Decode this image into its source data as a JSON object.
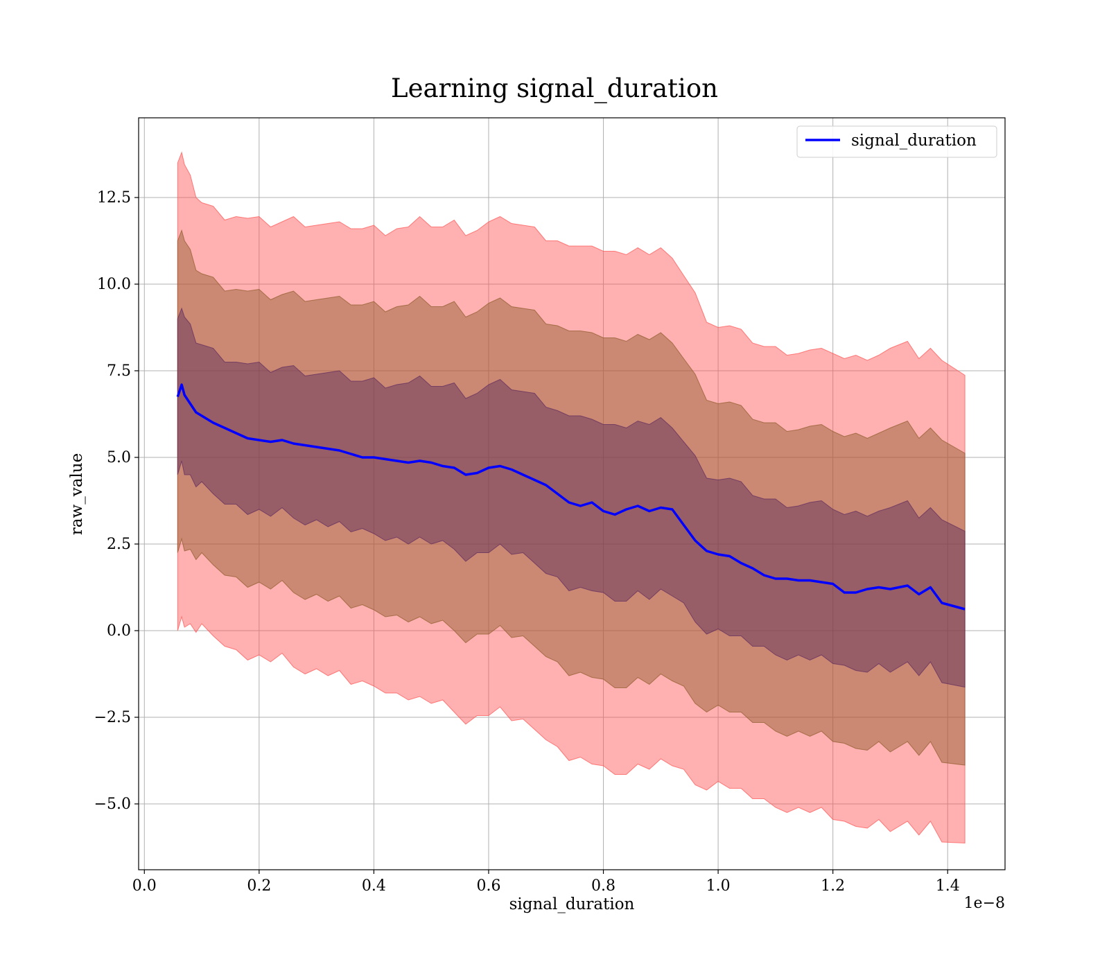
{
  "chart_data": {
    "type": "line",
    "title": "Learning signal_duration",
    "xlabel": "signal_duration",
    "ylabel": "raw_value",
    "x_offset_text": "1e−8",
    "xlim": [
      -0.01,
      1.5
    ],
    "ylim": [
      -6.9,
      14.8
    ],
    "x_ticks": [
      0.0,
      0.2,
      0.4,
      0.6,
      0.8,
      1.0,
      1.2,
      1.4
    ],
    "x_tick_labels": [
      "0.0",
      "0.2",
      "0.4",
      "0.6",
      "0.8",
      "1.0",
      "1.2",
      "1.4"
    ],
    "y_ticks": [
      -5.0,
      -2.5,
      0.0,
      2.5,
      5.0,
      7.5,
      10.0,
      12.5
    ],
    "y_tick_labels": [
      "−5.0",
      "−2.5",
      "0.0",
      "2.5",
      "5.0",
      "7.5",
      "10.0",
      "12.5"
    ],
    "grid": true,
    "legend_position": "upper right",
    "series": [
      {
        "name": "signal_duration",
        "color": "#0000ff",
        "x": [
          0.058,
          0.065,
          0.07,
          0.08,
          0.09,
          0.1,
          0.12,
          0.14,
          0.16,
          0.18,
          0.2,
          0.22,
          0.24,
          0.26,
          0.28,
          0.3,
          0.32,
          0.34,
          0.36,
          0.38,
          0.4,
          0.42,
          0.44,
          0.46,
          0.48,
          0.5,
          0.52,
          0.54,
          0.56,
          0.58,
          0.6,
          0.62,
          0.64,
          0.66,
          0.68,
          0.7,
          0.72,
          0.74,
          0.76,
          0.78,
          0.8,
          0.82,
          0.84,
          0.86,
          0.88,
          0.9,
          0.92,
          0.94,
          0.96,
          0.98,
          1.0,
          1.02,
          1.04,
          1.06,
          1.08,
          1.1,
          1.12,
          1.14,
          1.16,
          1.18,
          1.2,
          1.22,
          1.24,
          1.26,
          1.28,
          1.3,
          1.33,
          1.35,
          1.37,
          1.39,
          1.43
        ],
        "values": [
          6.75,
          7.1,
          6.8,
          6.55,
          6.3,
          6.2,
          6.0,
          5.85,
          5.7,
          5.55,
          5.5,
          5.45,
          5.5,
          5.4,
          5.35,
          5.3,
          5.25,
          5.2,
          5.1,
          5.0,
          5.0,
          4.95,
          4.9,
          4.85,
          4.9,
          4.85,
          4.75,
          4.7,
          4.5,
          4.55,
          4.7,
          4.75,
          4.65,
          4.5,
          4.35,
          4.2,
          3.95,
          3.7,
          3.6,
          3.7,
          3.45,
          3.35,
          3.5,
          3.6,
          3.45,
          3.55,
          3.5,
          3.05,
          2.6,
          2.3,
          2.2,
          2.15,
          1.95,
          1.8,
          1.6,
          1.5,
          1.5,
          1.45,
          1.45,
          1.4,
          1.35,
          1.1,
          1.1,
          1.2,
          1.25,
          1.2,
          1.3,
          1.05,
          1.25,
          0.8,
          0.62
        ]
      }
    ],
    "bands": [
      {
        "fill": "#ff5050",
        "opacity": 0.45,
        "sigma": 3
      },
      {
        "fill": "#8b5a2b",
        "opacity": 0.45,
        "sigma": 2
      },
      {
        "fill": "#5c2a5c",
        "opacity": 0.45,
        "sigma": 1
      }
    ],
    "band_sigma_unit": [
      2.25,
      2.25,
      2.2,
      2.15,
      2.1,
      2.05,
      2.05,
      2.05,
      2.1,
      2.1,
      2.1,
      2.1,
      2.1,
      2.15,
      2.15,
      2.15,
      2.15,
      2.15,
      2.2,
      2.2,
      2.2,
      2.2,
      2.25,
      2.25,
      2.3,
      2.3,
      2.3,
      2.35,
      2.35,
      2.35,
      2.35,
      2.35,
      2.4,
      2.4,
      2.4,
      2.4,
      2.45,
      2.45,
      2.45,
      2.5,
      2.5,
      2.5,
      2.5,
      2.5,
      2.45,
      2.45,
      2.45,
      2.4,
      2.35,
      2.25,
      2.2,
      2.2,
      2.2,
      2.2,
      2.2,
      2.2,
      2.2,
      2.2,
      2.2,
      2.2,
      2.25,
      2.25,
      2.25,
      2.25,
      2.25,
      2.3,
      2.3,
      2.3,
      2.3,
      2.3,
      2.25
    ]
  }
}
